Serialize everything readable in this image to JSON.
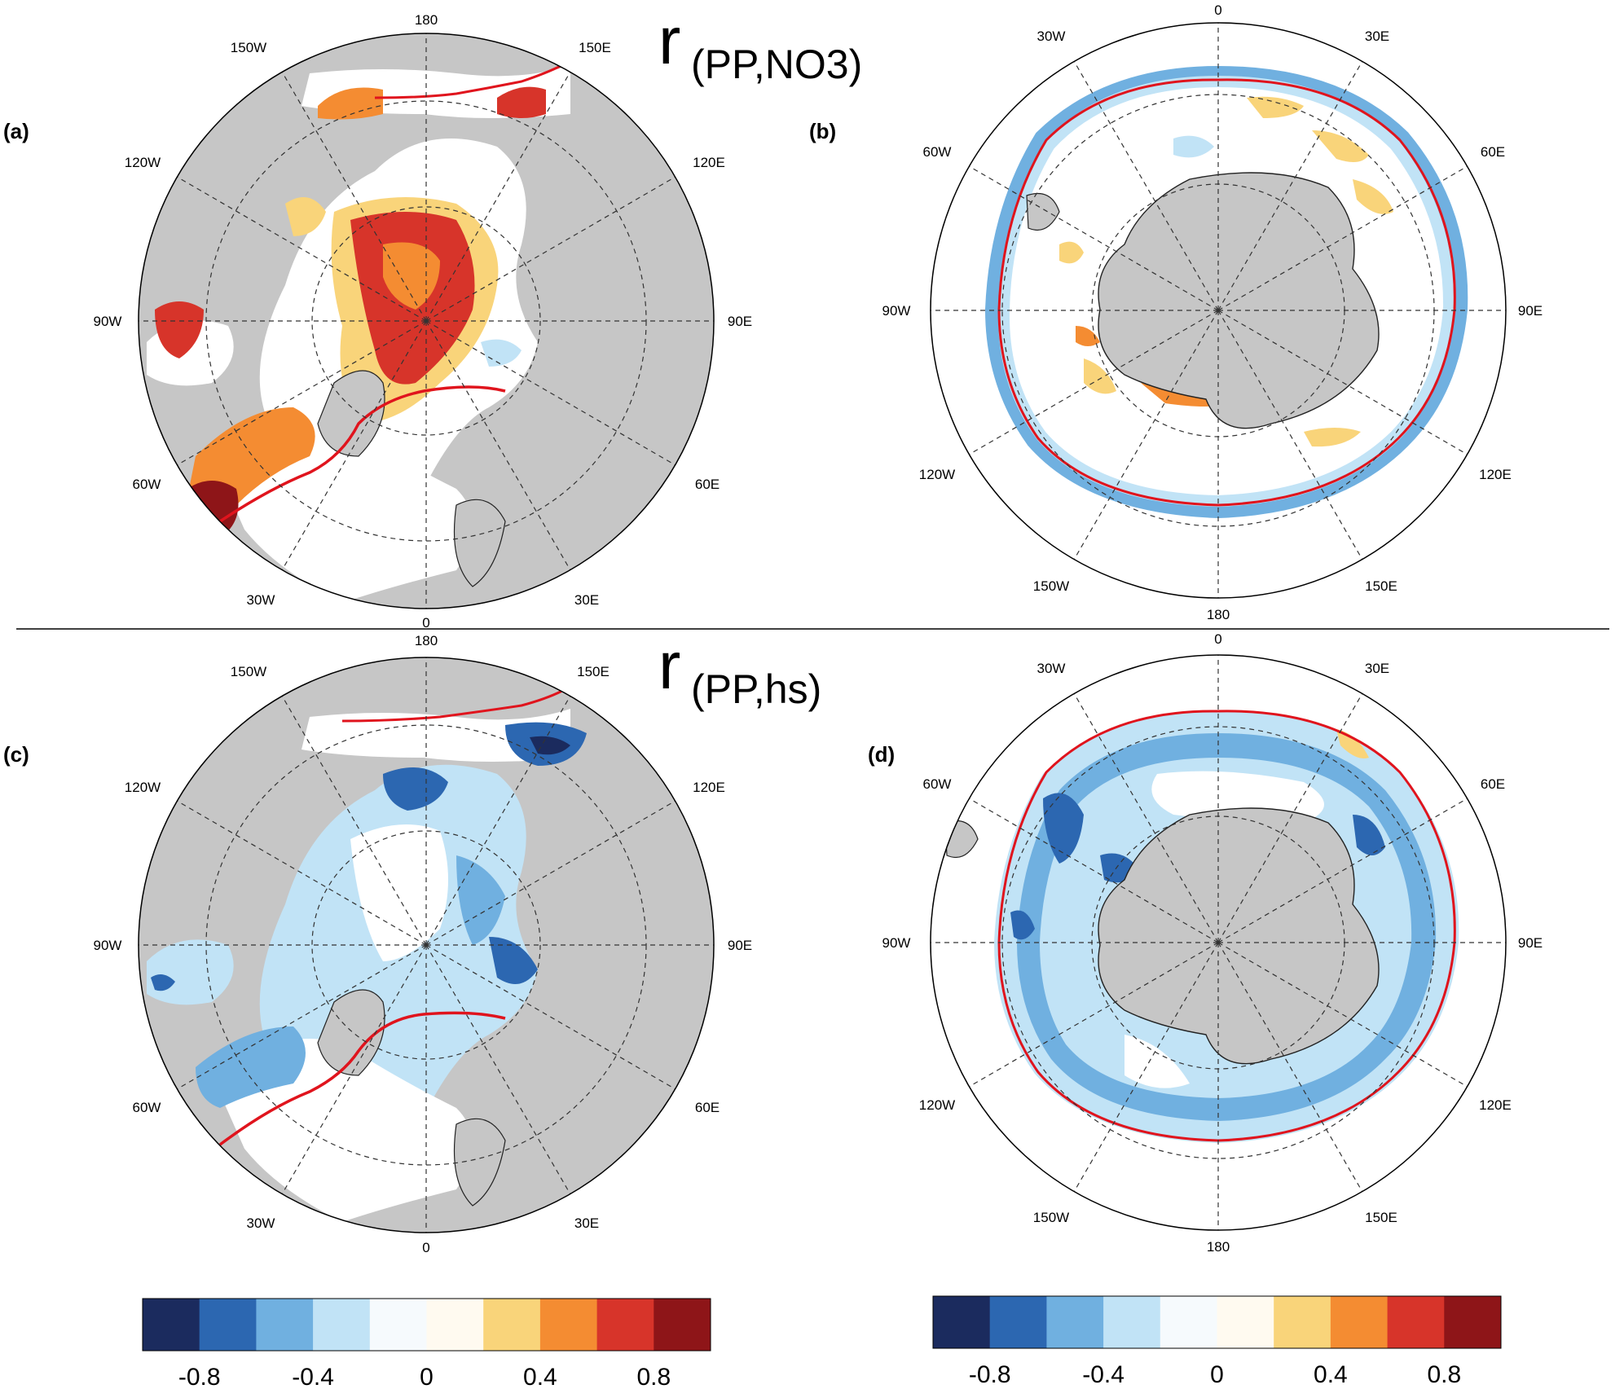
{
  "titles": [
    {
      "main": "r",
      "sub": "(PP,NO3)"
    },
    {
      "main": "r",
      "sub": "(PP,hs)"
    }
  ],
  "panels": [
    {
      "id": "a",
      "label": "(a)",
      "hemisphere": "north",
      "field": "PP,NO3",
      "lon_labels": {
        "top": "180",
        "top_right": "150E",
        "right_upper": "120E",
        "right": "90E",
        "right_lower": "60E",
        "bottom_right": "30E",
        "bottom": "0",
        "bottom_left": "30W",
        "left_lower": "60W",
        "left": "90W",
        "left_upper": "120W",
        "top_left": "150W"
      }
    },
    {
      "id": "b",
      "label": "(b)",
      "hemisphere": "south",
      "field": "PP,NO3",
      "lon_labels": {
        "top": "0",
        "top_right": "30E",
        "right_upper": "60E",
        "right": "90E",
        "right_lower": "120E",
        "bottom_right": "150E",
        "bottom": "180",
        "bottom_left": "150W",
        "left_lower": "120W",
        "left": "90W",
        "left_upper": "60W",
        "top_left": "30W"
      }
    },
    {
      "id": "c",
      "label": "(c)",
      "hemisphere": "north",
      "field": "PP,hs",
      "lon_labels": {
        "top": "180",
        "top_right": "150E",
        "right_upper": "120E",
        "right": "90E",
        "right_lower": "60E",
        "bottom_right": "30E",
        "bottom": "0",
        "bottom_left": "30W",
        "left_lower": "60W",
        "left": "90W",
        "left_upper": "120W",
        "top_left": "150W"
      }
    },
    {
      "id": "d",
      "label": "(d)",
      "hemisphere": "south",
      "field": "PP,hs",
      "lon_labels": {
        "top": "0",
        "top_right": "30E",
        "right_upper": "60E",
        "right": "90E",
        "right_lower": "120E",
        "bottom_right": "150E",
        "bottom": "180",
        "bottom_left": "150W",
        "left_lower": "120W",
        "left": "90W",
        "left_upper": "60W",
        "top_left": "30W"
      }
    }
  ],
  "colorbar": {
    "colors": [
      "#1b2b5e",
      "#2c67b1",
      "#70b0e0",
      "#c1e3f6",
      "#f6fafd",
      "#fffaf0",
      "#f9d47a",
      "#f48c32",
      "#d7342a",
      "#8e1518"
    ],
    "tick_labels": [
      "-0.8",
      "-0.4",
      "0",
      "0.4",
      "0.8"
    ]
  },
  "map_colors": {
    "land": "#c6c6c6",
    "ice_edge": "#e0141d",
    "ocean": "#ffffff",
    "coast": "#222222"
  }
}
